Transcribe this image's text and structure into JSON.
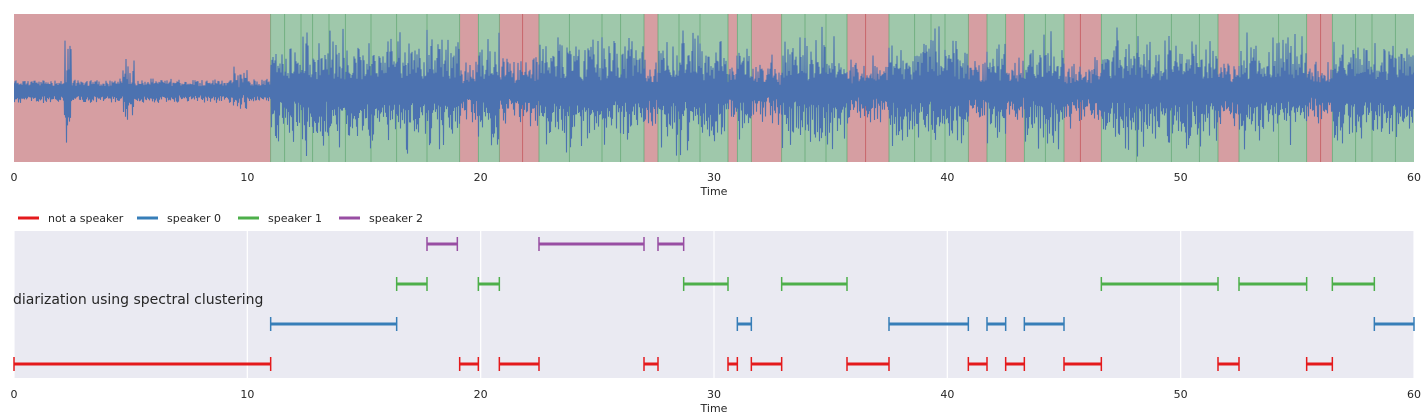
{
  "chart_data": [
    {
      "type": "area",
      "chart": "waveform-with-segments",
      "xlabel": "Time",
      "xlim": [
        0,
        60
      ],
      "xticks": [
        0,
        10,
        20,
        30,
        40,
        50,
        60
      ],
      "grid": false,
      "waveform_color": "#4c72b0",
      "background_segments": [
        {
          "start": 0.0,
          "end": 11.0,
          "class": "non-speech"
        },
        {
          "start": 11.0,
          "end": 19.1,
          "class": "speech"
        },
        {
          "start": 19.1,
          "end": 19.9,
          "class": "non-speech"
        },
        {
          "start": 19.9,
          "end": 20.8,
          "class": "speech"
        },
        {
          "start": 20.8,
          "end": 22.5,
          "class": "non-speech"
        },
        {
          "start": 22.5,
          "end": 27.0,
          "class": "speech"
        },
        {
          "start": 27.0,
          "end": 27.6,
          "class": "non-speech"
        },
        {
          "start": 27.6,
          "end": 30.6,
          "class": "speech"
        },
        {
          "start": 30.6,
          "end": 31.0,
          "class": "non-speech"
        },
        {
          "start": 31.0,
          "end": 31.6,
          "class": "speech"
        },
        {
          "start": 31.6,
          "end": 32.9,
          "class": "non-speech"
        },
        {
          "start": 32.9,
          "end": 35.7,
          "class": "speech"
        },
        {
          "start": 35.7,
          "end": 37.5,
          "class": "non-speech"
        },
        {
          "start": 37.5,
          "end": 40.9,
          "class": "speech"
        },
        {
          "start": 40.9,
          "end": 41.7,
          "class": "non-speech"
        },
        {
          "start": 41.7,
          "end": 42.5,
          "class": "speech"
        },
        {
          "start": 42.5,
          "end": 43.3,
          "class": "non-speech"
        },
        {
          "start": 43.3,
          "end": 45.0,
          "class": "speech"
        },
        {
          "start": 45.0,
          "end": 46.6,
          "class": "non-speech"
        },
        {
          "start": 46.6,
          "end": 51.6,
          "class": "speech"
        },
        {
          "start": 51.6,
          "end": 52.5,
          "class": "non-speech"
        },
        {
          "start": 52.5,
          "end": 55.4,
          "class": "speech"
        },
        {
          "start": 55.4,
          "end": 56.5,
          "class": "non-speech"
        },
        {
          "start": 56.5,
          "end": 60.0,
          "class": "speech"
        }
      ],
      "segment_colors": {
        "speech": "#9fc8ab",
        "non-speech": "#d69ea2"
      },
      "speech_boundaries": [
        11.0,
        11.6,
        12.3,
        12.8,
        13.5,
        14.2,
        15.3,
        16.4,
        17.7,
        19.1,
        19.9,
        20.8,
        21.8,
        22.5,
        23.8,
        25.2,
        26.0,
        27.0,
        27.6,
        28.5,
        29.4,
        30.6,
        31.0,
        31.6,
        32.9,
        33.9,
        34.8,
        35.7,
        36.5,
        37.5,
        38.6,
        39.3,
        39.9,
        40.9,
        41.7,
        42.5,
        43.3,
        44.2,
        45.0,
        45.7,
        46.6,
        48.1,
        49.6,
        50.8,
        51.6,
        52.5,
        54.2,
        55.4,
        56.0,
        56.5,
        57.5,
        58.2,
        59.2
      ]
    },
    {
      "type": "timeline",
      "chart": "speaker-diarization",
      "xlabel": "Time",
      "xlim": [
        0,
        60
      ],
      "xticks": [
        0,
        10,
        20,
        30,
        40,
        50,
        60
      ],
      "grid": true,
      "legend_position": "top-left",
      "annotation": "diarization using spectral clustering",
      "series": [
        {
          "name": "speaker 2",
          "color": "#984ea3",
          "segments": [
            [
              17.7,
              19.0
            ],
            [
              22.5,
              27.0
            ],
            [
              27.6,
              28.7
            ]
          ]
        },
        {
          "name": "speaker 1",
          "color": "#4daf4a",
          "segments": [
            [
              16.4,
              17.7
            ],
            [
              19.9,
              20.8
            ],
            [
              28.7,
              30.6
            ],
            [
              32.9,
              35.7
            ],
            [
              46.6,
              51.6
            ],
            [
              52.5,
              55.4
            ],
            [
              56.5,
              58.3
            ]
          ]
        },
        {
          "name": "speaker 0",
          "color": "#377eb8",
          "segments": [
            [
              11.0,
              16.4
            ],
            [
              31.0,
              31.6
            ],
            [
              37.5,
              40.9
            ],
            [
              41.7,
              42.5
            ],
            [
              43.3,
              45.0
            ],
            [
              58.3,
              60.0
            ]
          ]
        },
        {
          "name": "not a speaker",
          "color": "#e41a1c",
          "segments": [
            [
              0.0,
              11.0
            ],
            [
              19.1,
              19.9
            ],
            [
              20.8,
              22.5
            ],
            [
              27.0,
              27.6
            ],
            [
              30.6,
              31.0
            ],
            [
              31.6,
              32.9
            ],
            [
              35.7,
              37.5
            ],
            [
              40.9,
              41.7
            ],
            [
              42.5,
              43.3
            ],
            [
              45.0,
              46.6
            ],
            [
              51.6,
              52.5
            ],
            [
              55.4,
              56.5
            ]
          ]
        }
      ],
      "legend_order": [
        "not a speaker",
        "speaker 0",
        "speaker 1",
        "speaker 2"
      ]
    }
  ]
}
